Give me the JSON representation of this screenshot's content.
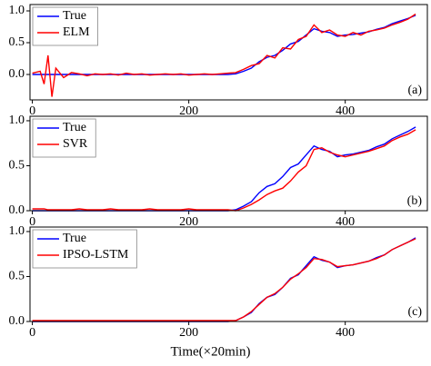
{
  "chart_data": [
    {
      "type": "line",
      "annotation": "(a)",
      "x": [
        0,
        10,
        15,
        20,
        25,
        30,
        40,
        50,
        60,
        70,
        80,
        90,
        100,
        110,
        120,
        130,
        140,
        150,
        160,
        170,
        180,
        190,
        200,
        210,
        220,
        230,
        240,
        250,
        260,
        270,
        280,
        290,
        300,
        310,
        320,
        330,
        340,
        350,
        360,
        370,
        380,
        390,
        400,
        410,
        420,
        430,
        440,
        450,
        460,
        470,
        480,
        490
      ],
      "series": [
        {
          "name": "True",
          "color": "#0000ff",
          "values": [
            0,
            0,
            0,
            0,
            0,
            0,
            0,
            0,
            0,
            0,
            0,
            0,
            0,
            0,
            0,
            0,
            0,
            0,
            0,
            0,
            0,
            0,
            0,
            0,
            0,
            0,
            0,
            0,
            0.01,
            0.05,
            0.1,
            0.2,
            0.27,
            0.3,
            0.38,
            0.48,
            0.52,
            0.62,
            0.72,
            0.68,
            0.66,
            0.6,
            0.62,
            0.63,
            0.65,
            0.67,
            0.71,
            0.74,
            0.8,
            0.84,
            0.88,
            0.93
          ]
        },
        {
          "name": "ELM",
          "color": "#ff0000",
          "values": [
            0.02,
            0.05,
            -0.15,
            0.3,
            -0.35,
            0.1,
            -0.05,
            0.03,
            0.01,
            -0.02,
            0.01,
            0,
            0.01,
            -0.01,
            0.02,
            0,
            0.01,
            -0.01,
            0,
            0.01,
            0,
            0.01,
            -0.01,
            0,
            0.01,
            0,
            0.01,
            0.02,
            0.03,
            0.08,
            0.14,
            0.17,
            0.3,
            0.26,
            0.42,
            0.4,
            0.55,
            0.6,
            0.78,
            0.66,
            0.7,
            0.62,
            0.6,
            0.66,
            0.62,
            0.68,
            0.7,
            0.73,
            0.78,
            0.82,
            0.87,
            0.95
          ]
        }
      ],
      "xlim": [
        -3,
        505
      ],
      "ylim": [
        -0.4,
        1.1
      ],
      "xticks": [
        0,
        200,
        400
      ],
      "yticks": [
        {
          "value": 0,
          "label": "0.0"
        },
        {
          "value": 0.5,
          "label": "0.5"
        },
        {
          "value": 1,
          "label": "1.0"
        }
      ]
    },
    {
      "type": "line",
      "annotation": "(b)",
      "x": [
        0,
        10,
        15,
        20,
        25,
        30,
        40,
        50,
        60,
        70,
        80,
        90,
        100,
        110,
        120,
        130,
        140,
        150,
        160,
        170,
        180,
        190,
        200,
        210,
        220,
        230,
        240,
        250,
        260,
        270,
        280,
        290,
        300,
        310,
        320,
        330,
        340,
        350,
        360,
        370,
        380,
        390,
        400,
        410,
        420,
        430,
        440,
        450,
        460,
        470,
        480,
        490
      ],
      "series": [
        {
          "name": "True",
          "color": "#0000ff",
          "values": [
            0,
            0,
            0,
            0,
            0,
            0,
            0,
            0,
            0,
            0,
            0,
            0,
            0,
            0,
            0,
            0,
            0,
            0,
            0,
            0,
            0,
            0,
            0,
            0,
            0,
            0,
            0,
            0,
            0.01,
            0.05,
            0.1,
            0.2,
            0.27,
            0.3,
            0.38,
            0.48,
            0.52,
            0.62,
            0.72,
            0.68,
            0.66,
            0.6,
            0.62,
            0.63,
            0.65,
            0.67,
            0.71,
            0.74,
            0.8,
            0.84,
            0.88,
            0.93
          ]
        },
        {
          "name": "SVR",
          "color": "#ff0000",
          "values": [
            0.02,
            0.02,
            0.02,
            0.01,
            0.01,
            0.01,
            0.01,
            0.01,
            0.02,
            0.01,
            0.01,
            0.01,
            0.02,
            0.01,
            0.01,
            0.01,
            0.01,
            0.02,
            0.01,
            0.01,
            0.01,
            0.01,
            0.02,
            0.01,
            0.01,
            0.01,
            0.01,
            0.01,
            0,
            0.03,
            0.07,
            0.12,
            0.18,
            0.22,
            0.25,
            0.33,
            0.43,
            0.5,
            0.68,
            0.7,
            0.65,
            0.62,
            0.6,
            0.62,
            0.64,
            0.66,
            0.69,
            0.72,
            0.78,
            0.82,
            0.85,
            0.9
          ]
        }
      ],
      "xlim": [
        -3,
        505
      ],
      "ylim": [
        0,
        1.05
      ],
      "xticks": [
        0,
        200,
        400
      ],
      "yticks": [
        {
          "value": 0,
          "label": "0.0"
        },
        {
          "value": 0.5,
          "label": "0.5"
        },
        {
          "value": 1,
          "label": "1.0"
        }
      ]
    },
    {
      "type": "line",
      "annotation": "(c)",
      "xlabel": "Time(×20min)",
      "x": [
        0,
        10,
        15,
        20,
        25,
        30,
        40,
        50,
        60,
        70,
        80,
        90,
        100,
        110,
        120,
        130,
        140,
        150,
        160,
        170,
        180,
        190,
        200,
        210,
        220,
        230,
        240,
        250,
        260,
        270,
        280,
        290,
        300,
        310,
        320,
        330,
        340,
        350,
        360,
        370,
        380,
        390,
        400,
        410,
        420,
        430,
        440,
        450,
        460,
        470,
        480,
        490
      ],
      "series": [
        {
          "name": "True",
          "color": "#0000ff",
          "values": [
            0,
            0,
            0,
            0,
            0,
            0,
            0,
            0,
            0,
            0,
            0,
            0,
            0,
            0,
            0,
            0,
            0,
            0,
            0,
            0,
            0,
            0,
            0,
            0,
            0,
            0,
            0,
            0,
            0.01,
            0.05,
            0.1,
            0.2,
            0.27,
            0.3,
            0.38,
            0.48,
            0.52,
            0.62,
            0.72,
            0.68,
            0.66,
            0.6,
            0.62,
            0.63,
            0.65,
            0.67,
            0.71,
            0.74,
            0.8,
            0.84,
            0.88,
            0.93
          ]
        },
        {
          "name": "IPSO-LSTM",
          "color": "#ff0000",
          "values": [
            0.01,
            0.01,
            0.01,
            0.01,
            0.01,
            0.01,
            0.01,
            0.01,
            0.01,
            0.01,
            0.01,
            0.01,
            0.01,
            0.01,
            0.01,
            0.01,
            0.01,
            0.01,
            0.01,
            0.01,
            0.01,
            0.01,
            0.01,
            0.01,
            0.01,
            0.01,
            0.01,
            0.01,
            0.01,
            0.05,
            0.11,
            0.19,
            0.27,
            0.31,
            0.38,
            0.47,
            0.53,
            0.6,
            0.7,
            0.69,
            0.66,
            0.61,
            0.62,
            0.63,
            0.65,
            0.67,
            0.7,
            0.74,
            0.8,
            0.84,
            0.88,
            0.92
          ]
        }
      ],
      "xlim": [
        -3,
        505
      ],
      "ylim": [
        0,
        1.05
      ],
      "xticks": [
        0,
        200,
        400
      ],
      "yticks": [
        {
          "value": 0,
          "label": "0.0"
        },
        {
          "value": 0.5,
          "label": "0.5"
        },
        {
          "value": 1,
          "label": "1.0"
        }
      ]
    }
  ]
}
